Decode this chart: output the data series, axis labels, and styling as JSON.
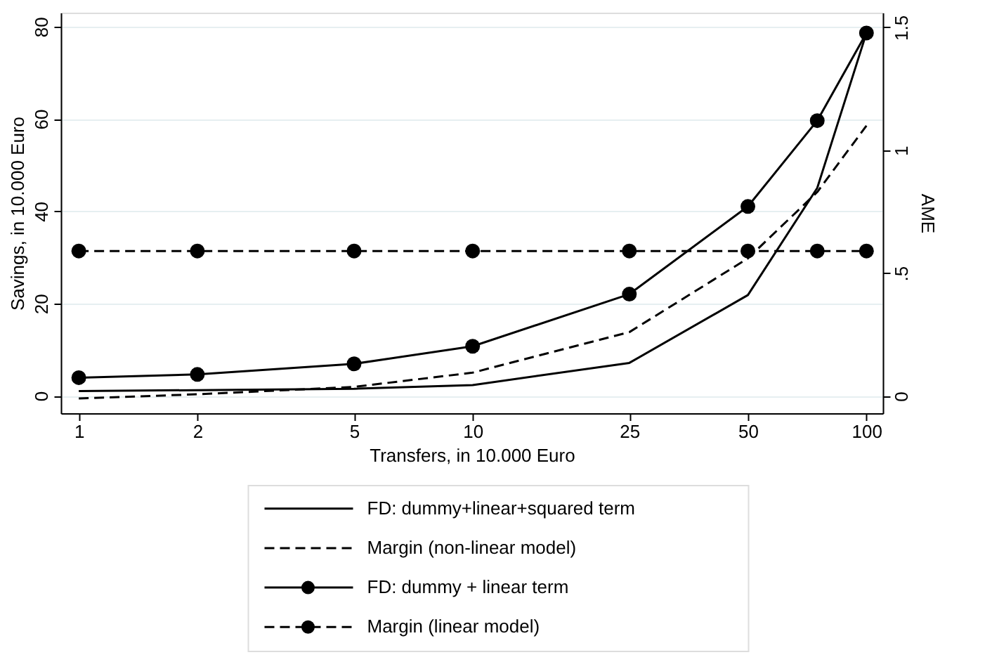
{
  "chart_data": {
    "type": "line",
    "xlabel": "Transfers, in 10.000 Euro",
    "ylabel": "Savings, in 10.000 Euro",
    "y2label": "AME",
    "x": [
      1,
      2,
      5,
      10,
      25,
      50,
      75,
      100
    ],
    "xlim": [
      0.9,
      110
    ],
    "xticks": [
      1,
      2,
      5,
      10,
      25,
      50,
      100
    ],
    "log": "x",
    "ylim": [
      -3.8,
      83
    ],
    "yticks": [
      0,
      20,
      40,
      60,
      80
    ],
    "y2lim": [
      -0.07,
      1.56
    ],
    "y2ticks": [
      0,
      {
        "value": 0.5,
        "label": ".5"
      },
      1,
      1.5
    ],
    "grid": "y",
    "legend": "bottom",
    "series": [
      {
        "name": "FD: dummy+linear+squared term",
        "color": "#000000",
        "line_style": "solid",
        "marker": "none",
        "values": [
          1.0,
          1.2,
          1.5,
          2.3,
          7.1,
          21.8,
          45,
          78.6
        ]
      },
      {
        "name": "Margin (non-linear model)",
        "color": "#000000",
        "line_style": "dashed",
        "marker": "none",
        "axis": "y2",
        "values": [
          -0.01,
          0.007,
          0.037,
          0.095,
          0.26,
          0.56,
          0.83,
          1.1
        ]
      },
      {
        "name": "FD: dummy + linear term",
        "color": "#000000",
        "line_style": "solid",
        "marker": "circle",
        "values": [
          3.9,
          4.6,
          6.9,
          10.7,
          22,
          41,
          59.6,
          78.6
        ]
      },
      {
        "name": "Margin (linear model)",
        "color": "#000000",
        "line_style": "dashed",
        "marker": "circle",
        "axis": "y2",
        "values": [
          0.59,
          0.59,
          0.59,
          0.59,
          0.59,
          0.59,
          0.59,
          0.59
        ]
      }
    ]
  }
}
